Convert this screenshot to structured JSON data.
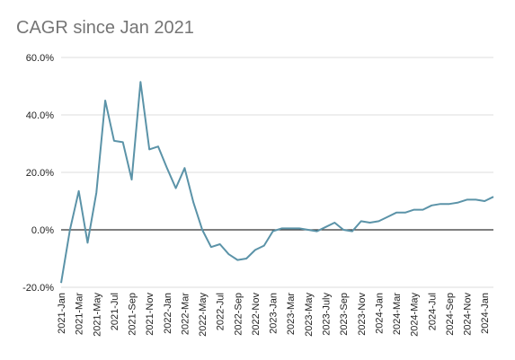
{
  "chart_data": {
    "type": "line",
    "title": "CAGR since Jan 2021",
    "xlabel": "",
    "ylabel": "",
    "ylim": [
      -20,
      60
    ],
    "y_ticks": [
      "-20.0%",
      "0.0%",
      "20.0%",
      "40.0%",
      "60.0%"
    ],
    "y_tick_values": [
      -20,
      0,
      20,
      40,
      60
    ],
    "x_tick_labels": [
      "2021-Jan",
      "2021-Mar",
      "2021-May",
      "2021-Jul",
      "2021-Sep",
      "2021-Nov",
      "2022-Jan",
      "2022-Mar",
      "2022-May",
      "2022-Jul",
      "2022-Sep",
      "2022-Nov",
      "2023-Jan",
      "2023-Mar",
      "2023-May",
      "2023-July",
      "2023-Sep",
      "2023-Nov",
      "2024-Jan",
      "2024-Mar",
      "2024-May",
      "2024-Jul",
      "2024-Sep",
      "2024-Nov",
      "2024-Jan"
    ],
    "x": [
      "2021-Jan",
      "2021-Feb",
      "2021-Mar",
      "2021-Apr",
      "2021-May",
      "2021-Jun",
      "2021-Jul",
      "2021-Aug",
      "2021-Sep",
      "2021-Oct",
      "2021-Nov",
      "2021-Dec",
      "2022-Jan",
      "2022-Feb",
      "2022-Mar",
      "2022-Apr",
      "2022-May",
      "2022-Jun",
      "2022-Jul",
      "2022-Aug",
      "2022-Sep",
      "2022-Oct",
      "2022-Nov",
      "2022-Dec",
      "2023-Jan",
      "2023-Feb",
      "2023-Mar",
      "2023-Apr",
      "2023-May",
      "2023-Jun",
      "2023-Jul",
      "2023-Aug",
      "2023-Sep",
      "2023-Oct",
      "2023-Nov",
      "2023-Dec",
      "2024-Jan",
      "2024-Feb",
      "2024-Mar",
      "2024-Apr",
      "2024-May",
      "2024-Jun",
      "2024-Jul",
      "2024-Aug",
      "2024-Sep",
      "2024-Oct",
      "2024-Nov",
      "2024-Dec",
      "2025-Jan",
      "2025-Feb"
    ],
    "series": [
      {
        "name": "",
        "color": "#5b93a8",
        "values": [
          -18.5,
          0,
          13.5,
          -4.5,
          13,
          45,
          31,
          30.5,
          17.5,
          51.5,
          28,
          29,
          21.5,
          14.5,
          21.5,
          9.5,
          0,
          -6,
          -5,
          -8.5,
          -10.5,
          -10,
          -7,
          -5.5,
          -0.5,
          0.5,
          0.5,
          0.5,
          0,
          -0.5,
          1,
          2.5,
          0,
          -0.5,
          3,
          2.5,
          3,
          4.5,
          6,
          6,
          7,
          7,
          8.5,
          9,
          9,
          9.5,
          10.5,
          10.5,
          10,
          11.5
        ]
      }
    ],
    "grid": true,
    "legend": "none"
  }
}
